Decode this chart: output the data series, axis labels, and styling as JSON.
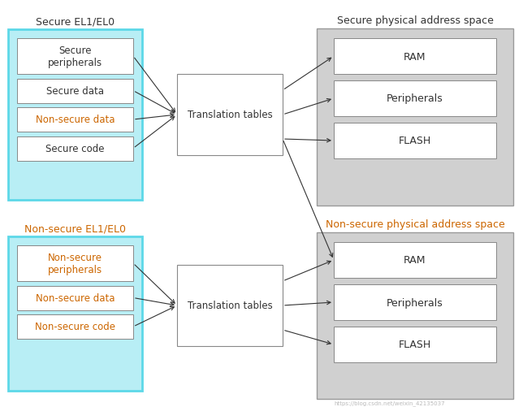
{
  "fig_width": 6.44,
  "fig_height": 5.02,
  "dpi": 100,
  "bg_color": "#ffffff",
  "cyan_border_color": "#5dd8e8",
  "cyan_fill_color": "#b8eef5",
  "gray_fill_color": "#d0d0d0",
  "gray_edge_color": "#999999",
  "white_fill": "#ffffff",
  "item_edge_color": "#888888",
  "dark_text": "#333333",
  "orange_text": "#cc6600",
  "arrow_color": "#333333",
  "watermark_text": "https://blog.csdn.net/weixin_42135037",
  "watermark_color": "#bbbbbb",
  "secure_group_label": "Secure EL1/EL0",
  "nonsecure_group_label": "Non-secure EL1/EL0",
  "secure_phys_label": "Secure physical address space",
  "nonsecure_phys_label": "Non-secure physical address space",
  "secure_items": [
    "Secure\nperipherals",
    "Secure data",
    "Non-secure data",
    "Secure code"
  ],
  "secure_item_colors": [
    "#333333",
    "#333333",
    "#cc6600",
    "#333333"
  ],
  "nonsecure_items": [
    "Non-secure\nperipherals",
    "Non-secure data",
    "Non-secure code"
  ],
  "nonsecure_item_colors": [
    "#cc6600",
    "#cc6600",
    "#cc6600"
  ],
  "phys_items": [
    "RAM",
    "Peripherals",
    "FLASH"
  ],
  "translation_label": "Translation tables",
  "font_size_label": 9,
  "font_size_item": 8.5,
  "font_size_trans": 8.5,
  "font_size_phys": 9,
  "font_size_watermark": 5
}
